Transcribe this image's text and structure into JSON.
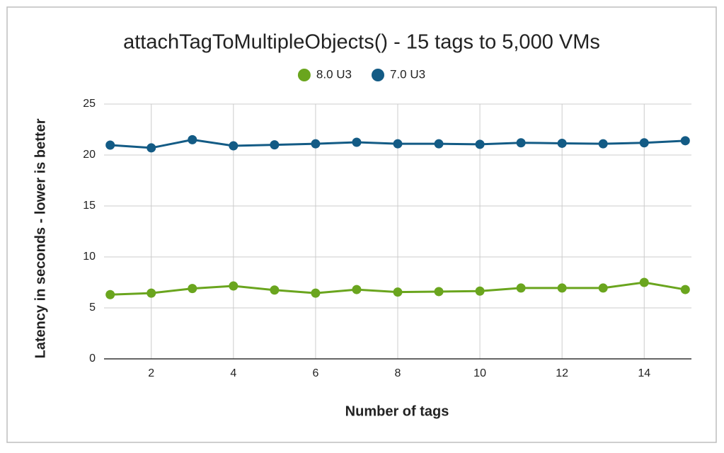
{
  "chart_data": {
    "type": "line",
    "title": "attachTagToMultipleObjects() - 15 tags to 5,000 VMs",
    "x_label": "Number of tags",
    "y_label": "Latency in seconds - lower is better",
    "x": [
      1,
      2,
      3,
      4,
      5,
      6,
      7,
      8,
      9,
      10,
      11,
      12,
      13,
      14,
      15
    ],
    "series": [
      {
        "name": "8.0 U3",
        "color": "#6aa51e",
        "values": [
          6.3,
          6.45,
          6.9,
          7.15,
          6.75,
          6.45,
          6.8,
          6.55,
          6.6,
          6.65,
          6.95,
          6.95,
          6.95,
          7.5,
          6.8
        ]
      },
      {
        "name": "7.0 U3",
        "color": "#135b85",
        "values": [
          20.97,
          20.7,
          21.5,
          20.9,
          21.0,
          21.1,
          21.25,
          21.1,
          21.1,
          21.05,
          21.2,
          21.15,
          21.1,
          21.2,
          21.4
        ]
      }
    ],
    "xlim": [
      0.85,
      15.15
    ],
    "xticks": [
      2,
      4,
      6,
      8,
      10,
      12,
      14
    ],
    "ylim": [
      0,
      25
    ],
    "yticks": [
      0,
      5,
      10,
      15,
      20,
      25
    ],
    "grid": true,
    "legend": "top"
  }
}
